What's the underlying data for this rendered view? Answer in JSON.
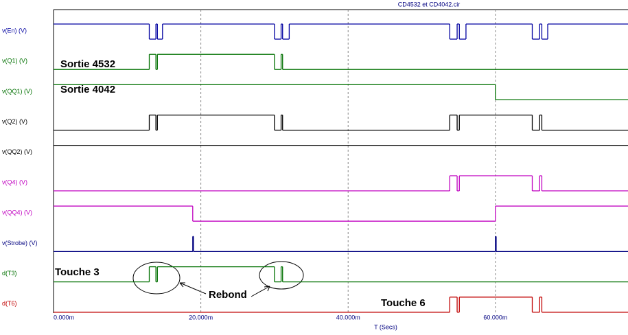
{
  "chart_data": {
    "type": "digital",
    "title": "CD4532 et CD4042.cir",
    "x_label": "T (Secs)",
    "xlim": [
      0,
      78
    ],
    "xticks": [
      {
        "value": 0,
        "label": "0.000m"
      },
      {
        "value": 20,
        "label": "20.000m"
      },
      {
        "value": 40,
        "label": "40.000m"
      },
      {
        "value": 60,
        "label": "60.000m"
      }
    ],
    "grid": true,
    "series": [
      {
        "name": "v(En) (V)",
        "color": "#0000a0",
        "x": [
          0,
          13.0,
          13.9,
          14.1,
          14.8,
          30.0,
          30.9,
          31.1,
          32.0,
          53.8,
          54.8,
          55.1,
          56.0,
          65.0,
          66.0,
          66.3,
          67.1
        ],
        "values": [
          1,
          0,
          1,
          0,
          1,
          0,
          1,
          0,
          1,
          0,
          1,
          0,
          1,
          0,
          1,
          0,
          1
        ]
      },
      {
        "name": "v(Q1) (V)",
        "color": "#007000",
        "x": [
          0,
          13.0,
          13.9,
          14.1,
          30.0,
          30.9,
          31.1
        ],
        "values": [
          0,
          1,
          0,
          1,
          0,
          1,
          0
        ]
      },
      {
        "name": "v(QQ1) (V)",
        "color": "#007000",
        "x": [
          0,
          60.0
        ],
        "values": [
          1,
          0
        ]
      },
      {
        "name": "v(Q2) (V)",
        "color": "#000000",
        "x": [
          0,
          13.0,
          13.9,
          14.1,
          30.0,
          30.9,
          31.1,
          53.8,
          54.8,
          55.1,
          65.0,
          66.0,
          66.3
        ],
        "values": [
          0,
          1,
          0,
          1,
          0,
          1,
          0,
          1,
          0,
          1,
          0,
          1,
          0
        ]
      },
      {
        "name": "v(QQ2) (V)",
        "color": "#000000",
        "x": [
          0
        ],
        "values": [
          1
        ]
      },
      {
        "name": "v(Q4) (V)",
        "color": "#c000c0",
        "x": [
          0,
          53.8,
          54.8,
          55.1,
          65.0,
          66.0,
          66.3
        ],
        "values": [
          0,
          1,
          0,
          1,
          0,
          1,
          0
        ]
      },
      {
        "name": "v(QQ4) (V)",
        "color": "#c000c0",
        "x": [
          0,
          18.9,
          60.0
        ],
        "values": [
          1,
          0,
          1
        ]
      },
      {
        "name": "v(Strobe) (V)",
        "color": "#000080",
        "x": [
          0,
          18.9,
          19.0,
          60.0,
          60.1
        ],
        "values": [
          0,
          1,
          0,
          1,
          0
        ]
      },
      {
        "name": "d(T3)",
        "color": "#007000",
        "x": [
          0,
          13.0,
          13.9,
          14.1,
          30.0,
          30.9,
          31.1
        ],
        "values": [
          0,
          1,
          0,
          1,
          0,
          1,
          0
        ]
      },
      {
        "name": "d(T6)",
        "color": "#c00000",
        "x": [
          0,
          53.8,
          54.8,
          55.1,
          65.0,
          66.0,
          66.3
        ],
        "values": [
          0,
          1,
          0,
          1,
          0,
          1,
          0
        ]
      }
    ],
    "annotations": [
      "Sortie 4532",
      "Sortie 4042",
      "Touche 3",
      "Rebond",
      "Touche 6"
    ]
  }
}
